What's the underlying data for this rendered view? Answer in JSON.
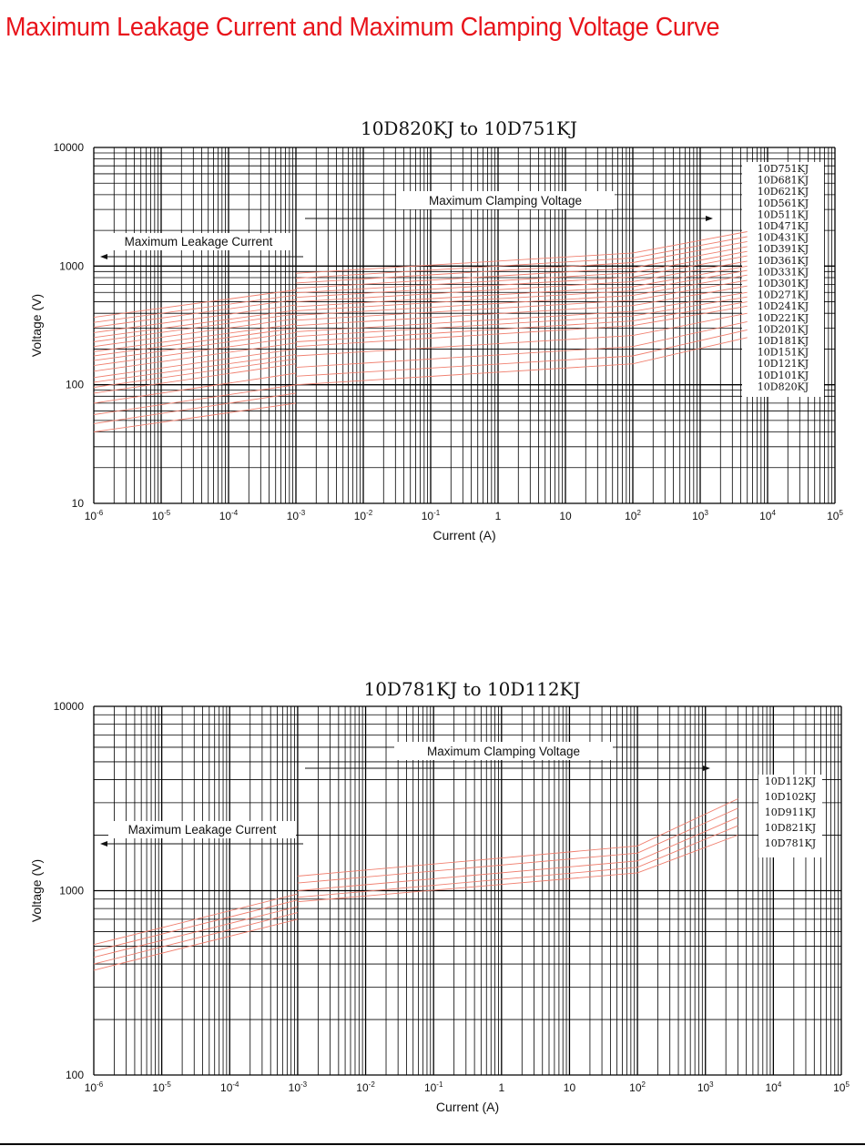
{
  "page": {
    "title": "Maximum Leakage Current and Maximum Clamping Voltage Curve",
    "accent_color": "#e8141b",
    "curve_color": "#f08070",
    "grid_color": "#000000"
  },
  "chart_data": [
    {
      "type": "line",
      "title": "10D820KJ to 10D751KJ",
      "xlabel": "Current (A)",
      "ylabel": "Voltage (V)",
      "xscale": "log",
      "yscale": "log",
      "xlim": [
        1e-06,
        100000
      ],
      "ylim": [
        10,
        10000
      ],
      "x_tick_labels": [
        "10-6",
        "10-5",
        "10-4",
        "10-3",
        "10-2",
        "10-1",
        "1",
        "10",
        "102",
        "103",
        "104",
        "105"
      ],
      "y_tick_labels": [
        "10",
        "100",
        "1000",
        "10000"
      ],
      "grid": true,
      "annotations": [
        "Maximum Clamping Voltage",
        "Maximum Leakage Current"
      ],
      "series_labels": [
        "10D751KJ",
        "10D681KJ",
        "10D621KJ",
        "10D561KJ",
        "10D511KJ",
        "10D471KJ",
        "10D431KJ",
        "10D391KJ",
        "10D361KJ",
        "10D331KJ",
        "10D301KJ",
        "10D271KJ",
        "10D241KJ",
        "10D221KJ",
        "10D201KJ",
        "10D181KJ",
        "10D151KJ",
        "10D121KJ",
        "10D101KJ",
        "10D820KJ"
      ],
      "series": [
        {
          "name": "10D820KJ",
          "leakage": [
            [
              1e-06,
              40
            ],
            [
              0.001,
              70
            ]
          ],
          "clamping": [
            [
              0.001,
              100
            ],
            [
              100,
              150
            ],
            [
              5000,
              250
            ]
          ]
        },
        {
          "name": "10D101KJ",
          "leakage": [
            [
              1e-06,
              47
            ],
            [
              0.001,
              85
            ]
          ],
          "clamping": [
            [
              0.001,
              118
            ],
            [
              100,
              175
            ],
            [
              5000,
              290
            ]
          ]
        },
        {
          "name": "10D121KJ",
          "leakage": [
            [
              1e-06,
              56
            ],
            [
              0.001,
              100
            ]
          ],
          "clamping": [
            [
              0.001,
              140
            ],
            [
              100,
              210
            ],
            [
              5000,
              340
            ]
          ]
        },
        {
          "name": "10D151KJ",
          "leakage": [
            [
              1e-06,
              70
            ],
            [
              0.001,
              125
            ]
          ],
          "clamping": [
            [
              0.001,
              175
            ],
            [
              100,
              260
            ],
            [
              5000,
              400
            ]
          ]
        },
        {
          "name": "10D181KJ",
          "leakage": [
            [
              1e-06,
              85
            ],
            [
              0.001,
              150
            ]
          ],
          "clamping": [
            [
              0.001,
              210
            ],
            [
              100,
              315
            ],
            [
              5000,
              460
            ]
          ]
        },
        {
          "name": "10D201KJ",
          "leakage": [
            [
              1e-06,
              95
            ],
            [
              0.001,
              165
            ]
          ],
          "clamping": [
            [
              0.001,
              230
            ],
            [
              100,
              345
            ],
            [
              5000,
              500
            ]
          ]
        },
        {
          "name": "10D221KJ",
          "leakage": [
            [
              1e-06,
              105
            ],
            [
              0.001,
              180
            ]
          ],
          "clamping": [
            [
              0.001,
              255
            ],
            [
              100,
              380
            ],
            [
              5000,
              550
            ]
          ]
        },
        {
          "name": "10D241KJ",
          "leakage": [
            [
              1e-06,
              115
            ],
            [
              0.001,
              200
            ]
          ],
          "clamping": [
            [
              0.001,
              280
            ],
            [
              100,
              415
            ],
            [
              5000,
              600
            ]
          ]
        },
        {
          "name": "10D271KJ",
          "leakage": [
            [
              1e-06,
              130
            ],
            [
              0.001,
              225
            ]
          ],
          "clamping": [
            [
              0.001,
              315
            ],
            [
              100,
              465
            ],
            [
              5000,
              680
            ]
          ]
        },
        {
          "name": "10D301KJ",
          "leakage": [
            [
              1e-06,
              145
            ],
            [
              0.001,
              250
            ]
          ],
          "clamping": [
            [
              0.001,
              350
            ],
            [
              100,
              515
            ],
            [
              5000,
              760
            ]
          ]
        },
        {
          "name": "10D331KJ",
          "leakage": [
            [
              1e-06,
              160
            ],
            [
              0.001,
              275
            ]
          ],
          "clamping": [
            [
              0.001,
              385
            ],
            [
              100,
              565
            ],
            [
              5000,
              840
            ]
          ]
        },
        {
          "name": "10D361KJ",
          "leakage": [
            [
              1e-06,
              175
            ],
            [
              0.001,
              300
            ]
          ],
          "clamping": [
            [
              0.001,
              420
            ],
            [
              100,
              620
            ],
            [
              5000,
              920
            ]
          ]
        },
        {
          "name": "10D391KJ",
          "leakage": [
            [
              1e-06,
              190
            ],
            [
              0.001,
              325
            ]
          ],
          "clamping": [
            [
              0.001,
              455
            ],
            [
              100,
              670
            ],
            [
              5000,
              1000
            ]
          ]
        },
        {
          "name": "10D431KJ",
          "leakage": [
            [
              1e-06,
              210
            ],
            [
              0.001,
              360
            ]
          ],
          "clamping": [
            [
              0.001,
              500
            ],
            [
              100,
              740
            ],
            [
              5000,
              1100
            ]
          ]
        },
        {
          "name": "10D471KJ",
          "leakage": [
            [
              1e-06,
              230
            ],
            [
              0.001,
              395
            ]
          ],
          "clamping": [
            [
              0.001,
              545
            ],
            [
              100,
              810
            ],
            [
              5000,
              1220
            ]
          ]
        },
        {
          "name": "10D511KJ",
          "leakage": [
            [
              1e-06,
              250
            ],
            [
              0.001,
              425
            ]
          ],
          "clamping": [
            [
              0.001,
              595
            ],
            [
              100,
              880
            ],
            [
              5000,
              1330
            ]
          ]
        },
        {
          "name": "10D561KJ",
          "leakage": [
            [
              1e-06,
              275
            ],
            [
              0.001,
              470
            ]
          ],
          "clamping": [
            [
              0.001,
              650
            ],
            [
              100,
              965
            ],
            [
              5000,
              1460
            ]
          ]
        },
        {
          "name": "10D621KJ",
          "leakage": [
            [
              1e-06,
              305
            ],
            [
              0.001,
              520
            ]
          ],
          "clamping": [
            [
              0.001,
              720
            ],
            [
              100,
              1070
            ],
            [
              5000,
              1610
            ]
          ]
        },
        {
          "name": "10D681KJ",
          "leakage": [
            [
              1e-06,
              335
            ],
            [
              0.001,
              570
            ]
          ],
          "clamping": [
            [
              0.001,
              790
            ],
            [
              100,
              1170
            ],
            [
              5000,
              1770
            ]
          ]
        },
        {
          "name": "10D751KJ",
          "leakage": [
            [
              1e-06,
              370
            ],
            [
              0.001,
              630
            ]
          ],
          "clamping": [
            [
              0.001,
              870
            ],
            [
              100,
              1290
            ],
            [
              5000,
              1950
            ]
          ]
        }
      ]
    },
    {
      "type": "line",
      "title": "10D781KJ to 10D112KJ",
      "xlabel": "Current (A)",
      "ylabel": "Voltage (V)",
      "xscale": "log",
      "yscale": "log",
      "xlim": [
        1e-06,
        100000
      ],
      "ylim": [
        100,
        10000
      ],
      "x_tick_labels": [
        "10-6",
        "10-5",
        "10-4",
        "10-3",
        "10-2",
        "10-1",
        "1",
        "10",
        "102",
        "103",
        "104",
        "105"
      ],
      "y_tick_labels": [
        "100",
        "1000",
        "10000"
      ],
      "grid": true,
      "annotations": [
        "Maximum Clamping Voltage",
        "Maximum Leakage Current"
      ],
      "series_labels": [
        "10D112KJ",
        "10D102KJ",
        "10D911KJ",
        "10D821KJ",
        "10D781KJ"
      ],
      "series": [
        {
          "name": "10D781KJ",
          "leakage": [
            [
              1e-06,
              370
            ],
            [
              0.001,
              700
            ]
          ],
          "clamping": [
            [
              0.001,
              870
            ],
            [
              100,
              1250
            ],
            [
              3000,
              2000
            ]
          ]
        },
        {
          "name": "10D821KJ",
          "leakage": [
            [
              1e-06,
              400
            ],
            [
              0.001,
              760
            ]
          ],
          "clamping": [
            [
              0.001,
              920
            ],
            [
              100,
              1340
            ],
            [
              3000,
              2250
            ]
          ]
        },
        {
          "name": "10D911KJ",
          "leakage": [
            [
              1e-06,
              435
            ],
            [
              0.001,
              820
            ]
          ],
          "clamping": [
            [
              0.001,
              1000
            ],
            [
              100,
              1450
            ],
            [
              3000,
              2500
            ]
          ]
        },
        {
          "name": "10D102KJ",
          "leakage": [
            [
              1e-06,
              470
            ],
            [
              0.001,
              890
            ]
          ],
          "clamping": [
            [
              0.001,
              1100
            ],
            [
              100,
              1600
            ],
            [
              3000,
              2800
            ]
          ]
        },
        {
          "name": "10D112KJ",
          "leakage": [
            [
              1e-06,
              510
            ],
            [
              0.001,
              960
            ]
          ],
          "clamping": [
            [
              0.001,
              1200
            ],
            [
              100,
              1750
            ],
            [
              3000,
              3150
            ]
          ]
        }
      ]
    }
  ]
}
